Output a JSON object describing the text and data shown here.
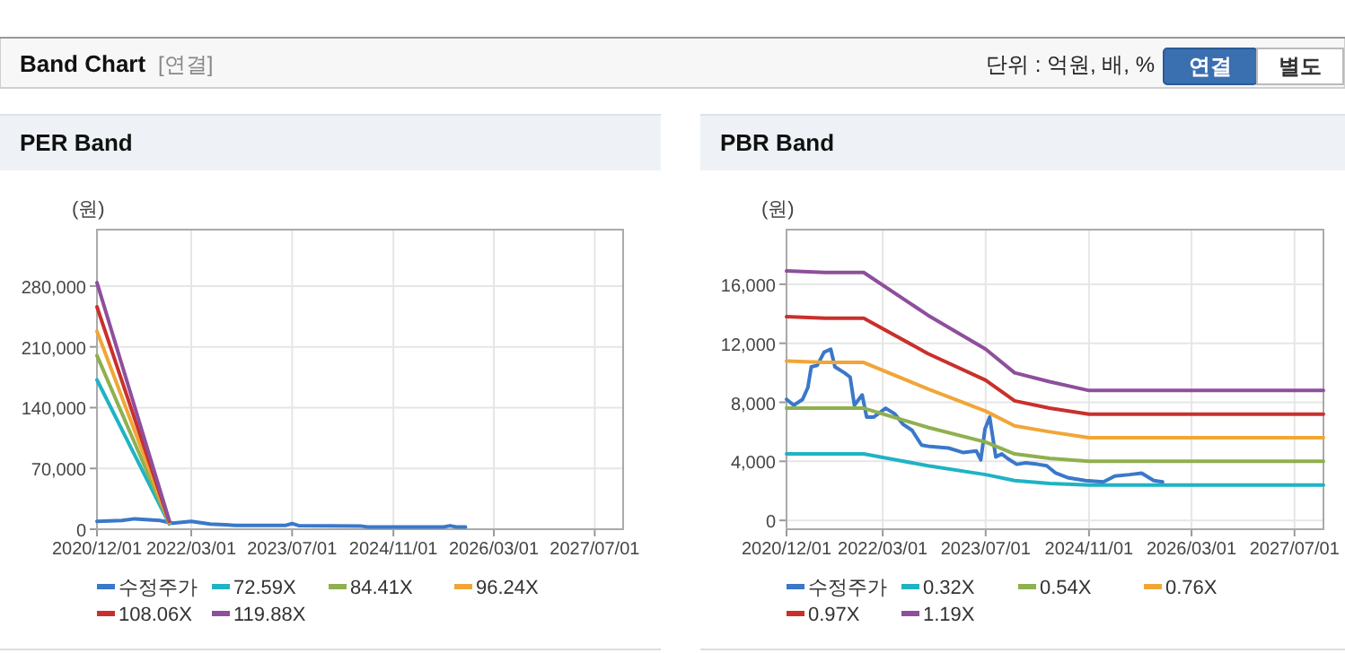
{
  "chart_data": [
    {
      "type": "other",
      "title": "Band Chart",
      "annotations": [
        "[연결]",
        "단위 : 억원, 배, %",
        "연결",
        "별도"
      ]
    },
    {
      "type": "line",
      "title": "PER Band",
      "ylabel": "(원)",
      "xlim": [
        "2020-12-01",
        "2027-11-15"
      ],
      "ylim": [
        0,
        345000
      ],
      "xticks": [
        {
          "value": "2020-12-01",
          "label": "2020/12/01"
        },
        {
          "value": "2022-03-01",
          "label": "2022/03/01"
        },
        {
          "value": "2023-07-01",
          "label": "2023/07/01"
        },
        {
          "value": "2024-11-01",
          "label": "2024/11/01"
        },
        {
          "value": "2026-03-01",
          "label": "2026/03/01"
        },
        {
          "value": "2027-07-01",
          "label": "2027/07/01"
        }
      ],
      "yticks": [
        0,
        {
          "value": 70000,
          "label": "70,000"
        },
        {
          "value": 140000,
          "label": "140,000"
        },
        {
          "value": 210000,
          "label": "210,000"
        },
        {
          "value": 280000,
          "label": "280,000"
        }
      ],
      "grid": true,
      "legend": "bottom",
      "series": [
        {
          "name": "수정주가",
          "color": "#3a78c9",
          "x": [
            "2020-12-01",
            "2021-04-01",
            "2021-06-01",
            "2021-10-01",
            "2021-12-01",
            "2022-03-01",
            "2022-06-01",
            "2022-10-01",
            "2023-06-01",
            "2023-07-01",
            "2023-08-01",
            "2024-06-01",
            "2024-07-01",
            "2025-07-01",
            "2025-08-01",
            "2025-09-01",
            "2025-10-15"
          ],
          "values": [
            9000,
            10000,
            12000,
            10000,
            7000,
            9000,
            6000,
            4500,
            4500,
            6500,
            4200,
            3500,
            2500,
            2500,
            4000,
            2500,
            2500
          ]
        },
        {
          "name": "72.59X",
          "color": "#1fb3c4",
          "x": [
            "2020-12-01",
            "2021-11-15"
          ],
          "values": [
            172000,
            6000
          ]
        },
        {
          "name": "84.41X",
          "color": "#8fb04f",
          "x": [
            "2020-12-01",
            "2021-11-15"
          ],
          "values": [
            200000,
            7000
          ]
        },
        {
          "name": "96.24X",
          "color": "#f0a637",
          "x": [
            "2020-12-01",
            "2021-11-15"
          ],
          "values": [
            228000,
            8000
          ]
        },
        {
          "name": "108.06X",
          "color": "#c9302c",
          "x": [
            "2020-12-01",
            "2021-11-15"
          ],
          "values": [
            256000,
            9000
          ]
        },
        {
          "name": "119.88X",
          "color": "#8e4f9c",
          "x": [
            "2020-12-01",
            "2021-11-15"
          ],
          "values": [
            284000,
            10000
          ]
        }
      ]
    },
    {
      "type": "line",
      "title": "PBR Band",
      "ylabel": "(원)",
      "xlim": [
        "2020-12-01",
        "2027-11-15"
      ],
      "ylim": [
        -600,
        19700
      ],
      "xticks": [
        {
          "value": "2020-12-01",
          "label": "2020/12/01"
        },
        {
          "value": "2022-03-01",
          "label": "2022/03/01"
        },
        {
          "value": "2023-07-01",
          "label": "2023/07/01"
        },
        {
          "value": "2024-11-01",
          "label": "2024/11/01"
        },
        {
          "value": "2026-03-01",
          "label": "2026/03/01"
        },
        {
          "value": "2027-07-01",
          "label": "2027/07/01"
        }
      ],
      "yticks": [
        0,
        {
          "value": 4000,
          "label": "4,000"
        },
        {
          "value": 8000,
          "label": "8,000"
        },
        {
          "value": 12000,
          "label": "12,000"
        },
        {
          "value": 16000,
          "label": "16,000"
        }
      ],
      "grid": true,
      "legend": "bottom",
      "series": [
        {
          "name": "수정주가",
          "color": "#3a78c9",
          "x": [
            "2020-12-01",
            "2021-01-04",
            "2021-02-15",
            "2021-03-12",
            "2021-03-28",
            "2021-04-25",
            "2021-05-28",
            "2021-06-28",
            "2021-07-18",
            "2021-09-01",
            "2021-09-28",
            "2021-10-18",
            "2021-11-24",
            "2021-12-15",
            "2022-01-18",
            "2022-03-15",
            "2022-04-28",
            "2022-06-06",
            "2022-07-18",
            "2022-09-01",
            "2022-10-12",
            "2023-01-06",
            "2023-03-15",
            "2023-05-18",
            "2023-06-08",
            "2023-06-28",
            "2023-07-20",
            "2023-08-18",
            "2023-09-15",
            "2023-10-12",
            "2023-11-25",
            "2024-01-06",
            "2024-03-03",
            "2024-04-15",
            "2024-05-28",
            "2024-07-22",
            "2024-10-15",
            "2025-01-08",
            "2025-03-03",
            "2025-05-12",
            "2025-07-08",
            "2025-09-03",
            "2025-10-15"
          ],
          "values": [
            8200,
            7800,
            8200,
            9000,
            10400,
            10500,
            11400,
            11600,
            10400,
            10000,
            9700,
            7800,
            8500,
            7000,
            7000,
            7600,
            7200,
            6500,
            6100,
            5100,
            5000,
            4900,
            4600,
            4700,
            4100,
            6200,
            7000,
            4300,
            4500,
            4200,
            3800,
            3900,
            3800,
            3700,
            3200,
            2900,
            2700,
            2600,
            3000,
            3100,
            3200,
            2700,
            2600
          ]
        },
        {
          "name": "0.32X",
          "color": "#1fb3c4",
          "x": [
            "2020-12-01",
            "2021-06-01",
            "2021-12-01",
            "2022-10-01",
            "2023-07-01",
            "2023-11-15",
            "2024-04-28",
            "2024-11-01",
            "2027-11-15"
          ],
          "values": [
            4500,
            4500,
            4500,
            3700,
            3100,
            2700,
            2500,
            2400,
            2400
          ]
        },
        {
          "name": "0.54X",
          "color": "#8fb04f",
          "x": [
            "2020-12-01",
            "2021-06-01",
            "2021-12-01",
            "2022-10-01",
            "2023-07-01",
            "2023-11-15",
            "2024-04-28",
            "2024-11-01",
            "2027-11-15"
          ],
          "values": [
            7600,
            7600,
            7600,
            6300,
            5300,
            4500,
            4200,
            4000,
            4000
          ]
        },
        {
          "name": "0.76X",
          "color": "#f0a637",
          "x": [
            "2020-12-01",
            "2021-06-01",
            "2021-12-01",
            "2022-10-01",
            "2023-07-01",
            "2023-11-15",
            "2024-04-28",
            "2024-11-01",
            "2027-11-15"
          ],
          "values": [
            10800,
            10700,
            10700,
            8900,
            7400,
            6400,
            6000,
            5600,
            5600
          ]
        },
        {
          "name": "0.97X",
          "color": "#c9302c",
          "x": [
            "2020-12-01",
            "2021-06-01",
            "2021-12-01",
            "2022-10-01",
            "2023-07-01",
            "2023-11-15",
            "2024-04-28",
            "2024-11-01",
            "2027-11-15"
          ],
          "values": [
            13800,
            13700,
            13700,
            11300,
            9500,
            8100,
            7600,
            7200,
            7200
          ]
        },
        {
          "name": "1.19X",
          "color": "#8e4f9c",
          "x": [
            "2020-12-01",
            "2021-06-01",
            "2021-12-01",
            "2022-10-01",
            "2023-07-01",
            "2023-11-15",
            "2024-04-28",
            "2024-11-01",
            "2027-11-15"
          ],
          "values": [
            16900,
            16800,
            16800,
            13900,
            11600,
            10000,
            9400,
            8800,
            8800
          ]
        }
      ]
    }
  ]
}
